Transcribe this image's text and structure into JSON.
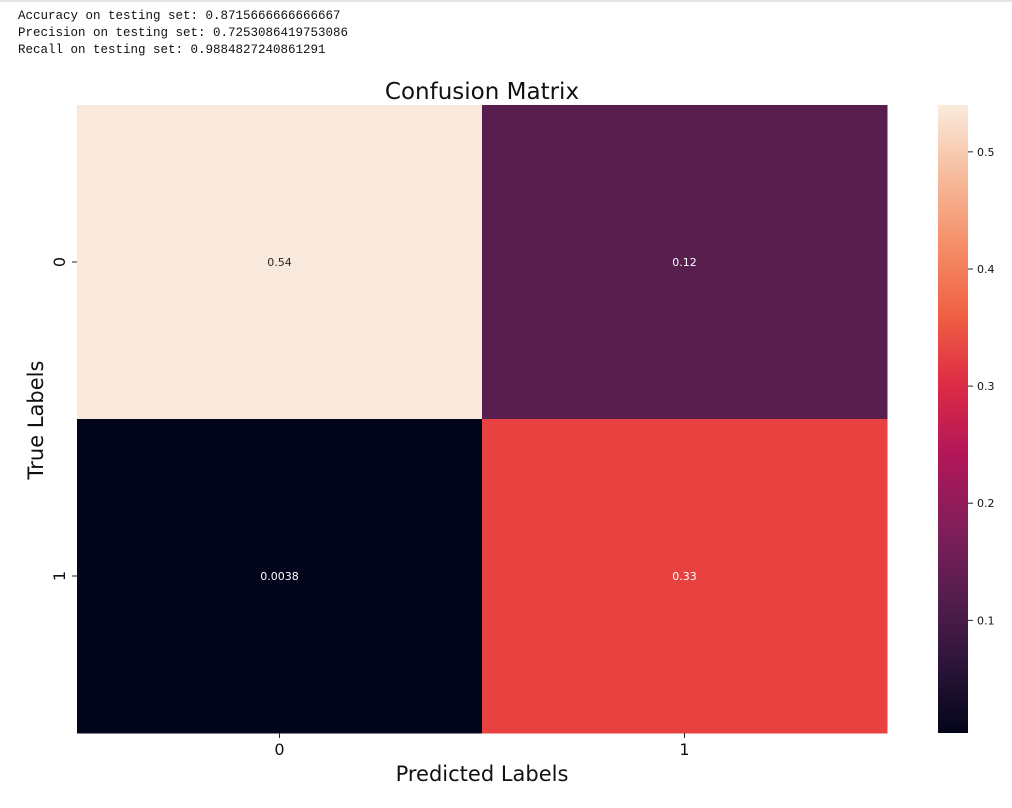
{
  "output": {
    "accuracy_line": "Accuracy on testing set: 0.8715666666666667",
    "precision_line": "Precision on testing set: 0.7253086419753086",
    "recall_line": "Recall on testing set: 0.9884827240861291"
  },
  "chart_data": {
    "type": "heatmap",
    "title": "Confusion Matrix",
    "xlabel": "Predicted Labels",
    "ylabel": "True Labels",
    "x_tick_labels": [
      "0",
      "1"
    ],
    "y_tick_labels": [
      "0",
      "1"
    ],
    "values": [
      [
        0.54,
        0.12
      ],
      [
        0.0038,
        0.33
      ]
    ],
    "cell_labels": [
      [
        "0.54",
        "0.12"
      ],
      [
        "0.0038",
        "0.33"
      ]
    ],
    "colormap": "rocket",
    "colors": {
      "cells": [
        [
          "#f9e9dd",
          "#571e4e"
        ],
        [
          "#03051a",
          "#e84240"
        ]
      ],
      "cell_text": [
        [
          "#262626",
          "#ffffff"
        ],
        [
          "#ffffff",
          "#ffffff"
        ]
      ]
    },
    "colorbar": {
      "range": [
        0.0038,
        0.54
      ],
      "ticks": [
        0.1,
        0.2,
        0.3,
        0.4,
        0.5
      ],
      "tick_labels": [
        "0.1",
        "0.2",
        "0.3",
        "0.4",
        "0.5"
      ],
      "gradient_stops": [
        "#03051a",
        "#2d1539",
        "#571e4e",
        "#841e5a",
        "#b31658",
        "#dd2c45",
        "#f06043",
        "#f58f69",
        "#f6bc9d",
        "#faebdd"
      ]
    }
  }
}
